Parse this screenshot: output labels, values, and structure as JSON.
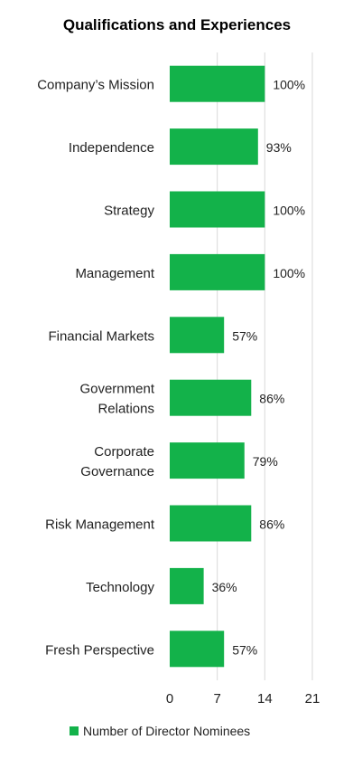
{
  "chart_data": {
    "type": "bar",
    "orientation": "horizontal",
    "title": "Qualifications and Experiences",
    "categories": [
      [
        "Company’s Mission"
      ],
      [
        "Independence"
      ],
      [
        "Strategy"
      ],
      [
        "Management"
      ],
      [
        "Financial Markets"
      ],
      [
        "Government",
        "Relations"
      ],
      [
        "Corporate",
        "Governance"
      ],
      [
        "Risk Management"
      ],
      [
        "Technology"
      ],
      [
        "Fresh Perspective"
      ]
    ],
    "series": [
      {
        "name": "Number of Director Nominees",
        "values": [
          14,
          13,
          14,
          14,
          8,
          12,
          11,
          12,
          5,
          8
        ],
        "data_labels": [
          "100%",
          "93%",
          "100%",
          "100%",
          "57%",
          "86%",
          "79%",
          "86%",
          "36%",
          "57%"
        ],
        "color": "#13b24a"
      }
    ],
    "xlim": [
      0,
      21
    ],
    "x_ticks": [
      0,
      7,
      14,
      21
    ],
    "grid": true,
    "legend_position": "bottom"
  }
}
